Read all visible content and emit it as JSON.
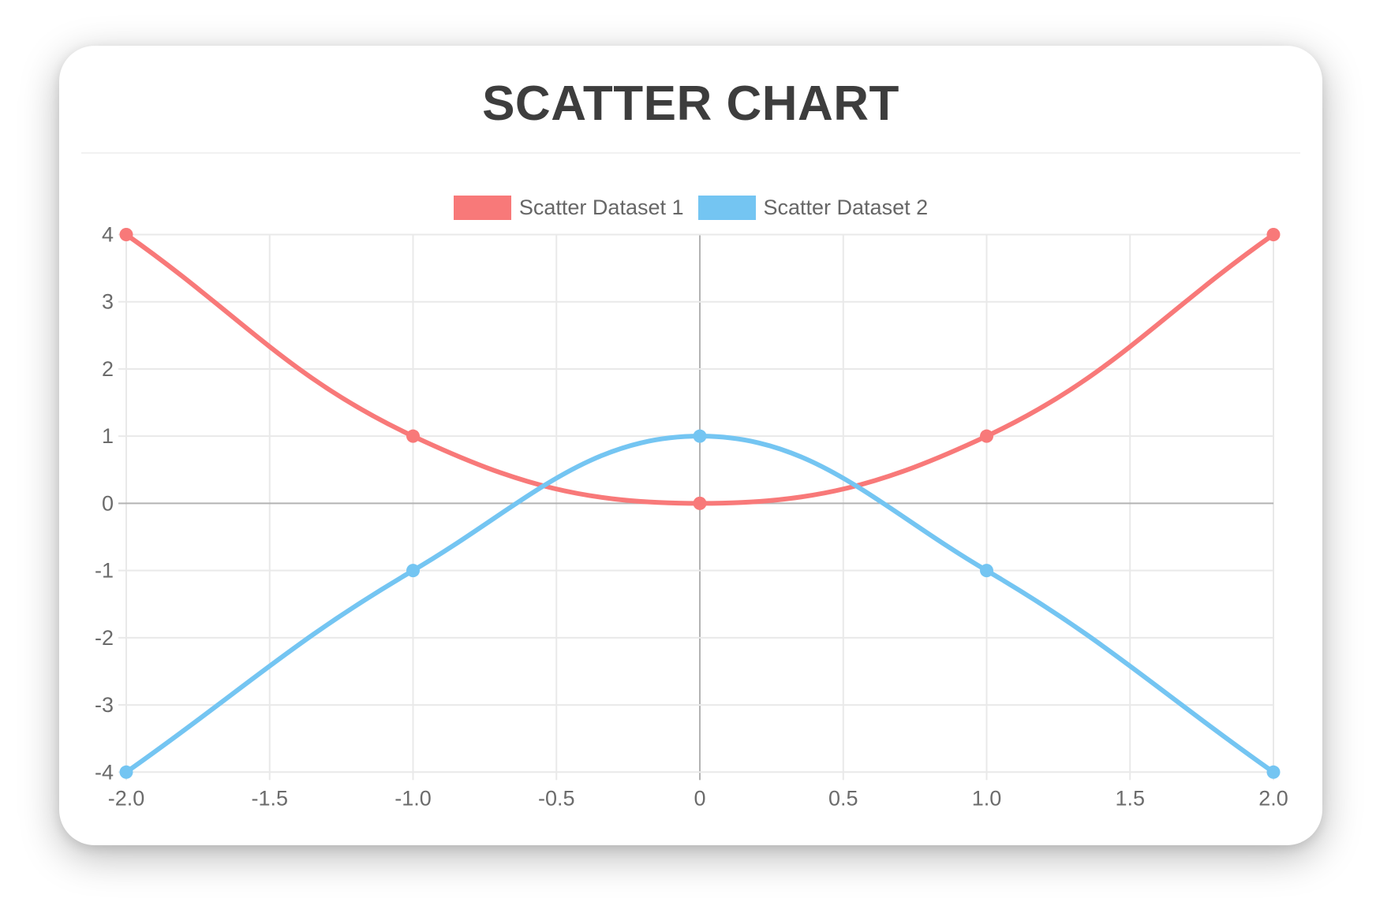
{
  "chart_data": {
    "type": "scatter",
    "title": "SCATTER CHART",
    "legend_position": "top",
    "grid": true,
    "line_tension": 0.4,
    "xlim": [
      -2,
      2
    ],
    "ylim": [
      -4,
      4
    ],
    "x_ticks": [
      "-2.0",
      "-1.5",
      "-1.0",
      "-0.5",
      "0",
      "0.5",
      "1.0",
      "1.5",
      "2.0"
    ],
    "y_ticks": [
      "4",
      "3",
      "2",
      "1",
      "0",
      "-1",
      "-2",
      "-3",
      "-4"
    ],
    "series": [
      {
        "name": "Scatter Dataset 1",
        "color": "#f87979",
        "points": [
          {
            "x": -2,
            "y": 4
          },
          {
            "x": -1,
            "y": 1
          },
          {
            "x": 0,
            "y": 0
          },
          {
            "x": 1,
            "y": 1
          },
          {
            "x": 2,
            "y": 4
          }
        ]
      },
      {
        "name": "Scatter Dataset 2",
        "color": "#74c5f2",
        "points": [
          {
            "x": -2,
            "y": -4
          },
          {
            "x": -1,
            "y": -1
          },
          {
            "x": 0,
            "y": 1
          },
          {
            "x": 1,
            "y": -1
          },
          {
            "x": 2,
            "y": -4
          }
        ]
      }
    ],
    "colors": {
      "grid_line": "#e9e9e9",
      "zero_line": "#b3b3b3",
      "tick_text": "#6b6b6b",
      "title_text": "#3d3d3d",
      "legend_text": "#666666",
      "card_background": "#ffffff"
    }
  }
}
